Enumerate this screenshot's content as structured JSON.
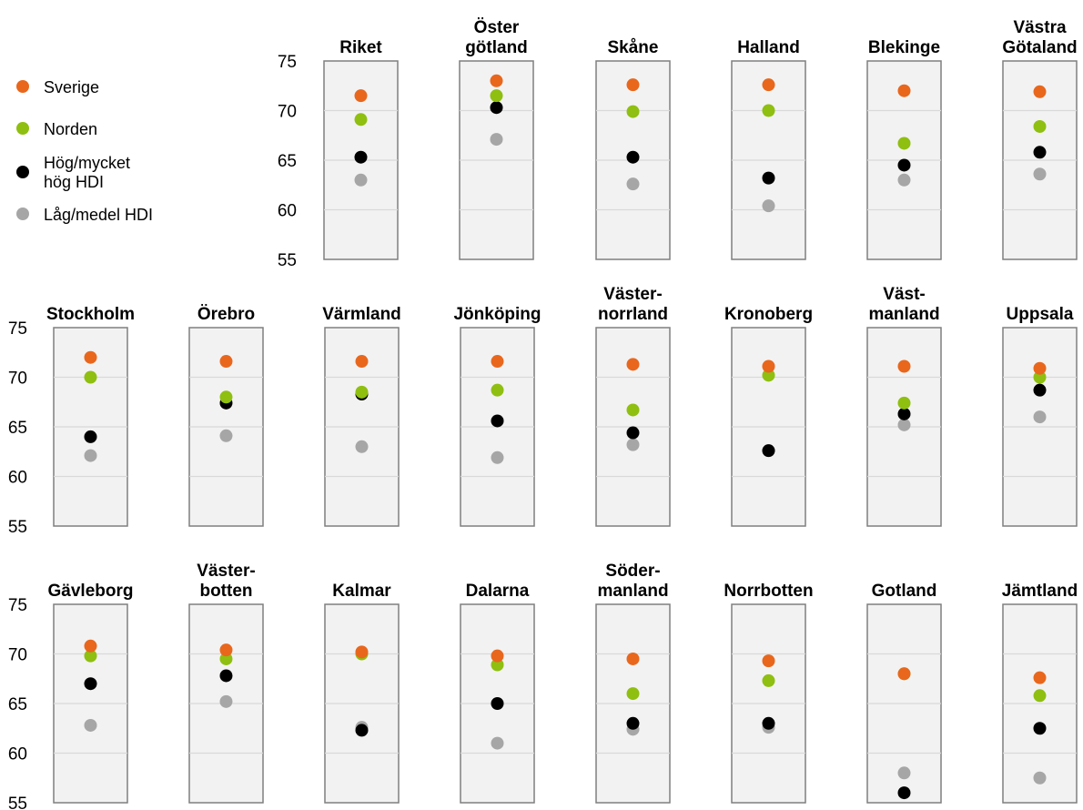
{
  "chart_data": {
    "type": "scatter",
    "ylim": [
      55,
      75
    ],
    "yticks": [
      55,
      60,
      65,
      70,
      75
    ],
    "grid": true,
    "legend": {
      "placement": "top-left",
      "entries": [
        {
          "label": "Sverige",
          "color": "#e8671d"
        },
        {
          "label": "Norden",
          "color": "#8fbf10"
        },
        {
          "label": [
            "Hög/mycket",
            "hög HDI"
          ],
          "color": "#000000"
        },
        {
          "label": "Låg/medel HDI",
          "color": "#a6a6a6"
        }
      ]
    },
    "series_order": [
      "Sverige",
      "Norden",
      "Hög/mycket hög HDI",
      "Låg/medel HDI"
    ],
    "panels": [
      {
        "title": [
          "Riket"
        ],
        "values": [
          71.5,
          69.1,
          65.3,
          63.0
        ]
      },
      {
        "title": [
          "Öster",
          "götland"
        ],
        "values": [
          73.0,
          71.5,
          70.3,
          67.1
        ]
      },
      {
        "title": [
          "Skåne"
        ],
        "values": [
          72.6,
          69.9,
          65.3,
          62.6
        ]
      },
      {
        "title": [
          "Halland"
        ],
        "values": [
          72.6,
          70.0,
          63.2,
          60.4
        ]
      },
      {
        "title": [
          "Blekinge"
        ],
        "values": [
          72.0,
          66.7,
          64.5,
          63.0
        ]
      },
      {
        "title": [
          "Västra",
          "Götaland"
        ],
        "values": [
          71.9,
          68.4,
          65.8,
          63.6
        ]
      },
      {
        "title": [
          "Stockholm"
        ],
        "values": [
          72.0,
          70.0,
          64.0,
          62.1
        ]
      },
      {
        "title": [
          "Örebro"
        ],
        "values": [
          71.6,
          68.0,
          67.4,
          64.1
        ]
      },
      {
        "title": [
          "Värmland"
        ],
        "values": [
          71.6,
          68.5,
          68.3,
          63.0
        ]
      },
      {
        "title": [
          "Jönköping"
        ],
        "values": [
          71.6,
          68.7,
          65.6,
          61.9
        ]
      },
      {
        "title": [
          "Väster-",
          "norrland"
        ],
        "values": [
          71.3,
          66.7,
          64.4,
          63.2
        ]
      },
      {
        "title": [
          "Kronoberg"
        ],
        "values": [
          71.1,
          70.2,
          62.6,
          62.6
        ]
      },
      {
        "title": [
          "Väst-",
          "manland"
        ],
        "values": [
          71.1,
          67.4,
          66.3,
          65.2
        ]
      },
      {
        "title": [
          "Uppsala"
        ],
        "values": [
          70.9,
          70.0,
          68.7,
          66.0
        ]
      },
      {
        "title": [
          "Gävleborg"
        ],
        "values": [
          70.8,
          69.8,
          67.0,
          62.8
        ]
      },
      {
        "title": [
          "Väster-",
          "botten"
        ],
        "values": [
          70.4,
          69.5,
          67.8,
          65.2
        ]
      },
      {
        "title": [
          "Kalmar"
        ],
        "values": [
          70.2,
          70.0,
          62.3,
          62.6
        ]
      },
      {
        "title": [
          "Dalarna"
        ],
        "values": [
          69.8,
          68.9,
          65.0,
          61.0
        ]
      },
      {
        "title": [
          "Söder-",
          "manland"
        ],
        "values": [
          69.5,
          66.0,
          63.0,
          62.4
        ]
      },
      {
        "title": [
          "Norrbotten"
        ],
        "values": [
          69.3,
          67.3,
          63.0,
          62.6
        ]
      },
      {
        "title": [
          "Gotland"
        ],
        "values": [
          68.0,
          68.0,
          56.0,
          58.0
        ]
      },
      {
        "title": [
          "Jämtland"
        ],
        "values": [
          67.6,
          65.8,
          62.5,
          57.5
        ]
      }
    ]
  }
}
